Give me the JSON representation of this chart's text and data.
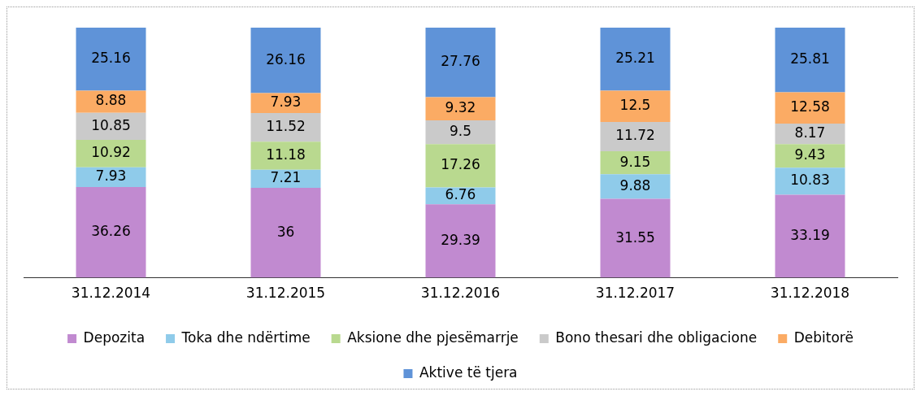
{
  "chart_data": {
    "type": "bar",
    "stacked": true,
    "data_labels": true,
    "legend": "bottom",
    "grid": false,
    "categories": [
      "31.12.2014",
      "31.12.2015",
      "31.12.2016",
      "31.12.2017",
      "31.12.2018"
    ],
    "series": [
      {
        "name": "Depozita",
        "color": "#c18ad0",
        "values": [
          36.26,
          36,
          29.39,
          31.55,
          33.19
        ]
      },
      {
        "name": "Toka dhe ndërtime",
        "color": "#8fcbea",
        "values": [
          7.93,
          7.21,
          6.76,
          9.88,
          10.83
        ]
      },
      {
        "name": "Aksione dhe pjesëmarrje",
        "color": "#b9d98f",
        "values": [
          10.92,
          11.18,
          17.26,
          9.15,
          9.43
        ]
      },
      {
        "name": "Bono thesari dhe obligacione",
        "color": "#cacaca",
        "values": [
          10.85,
          11.52,
          9.5,
          11.72,
          8.17
        ]
      },
      {
        "name": "Debitorë",
        "color": "#fbab64",
        "values": [
          8.88,
          7.93,
          9.32,
          12.5,
          12.58
        ]
      },
      {
        "name": "Aktive të tjera",
        "color": "#5f93d8",
        "values": [
          25.16,
          26.16,
          27.76,
          25.21,
          25.81
        ]
      }
    ]
  }
}
